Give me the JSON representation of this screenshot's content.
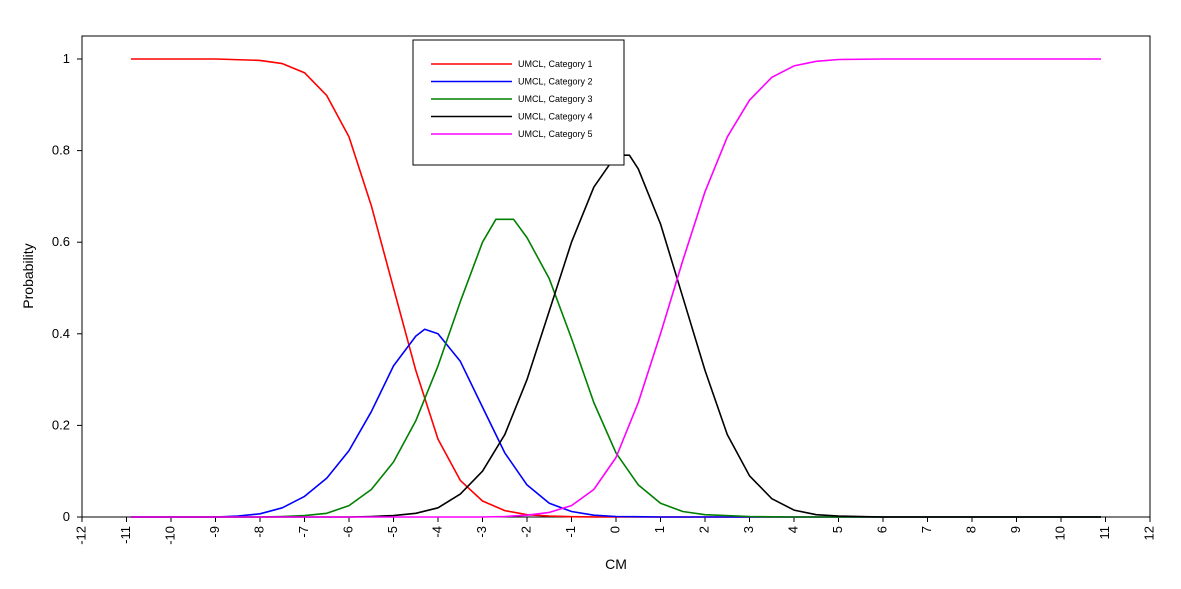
{
  "chart_data": {
    "type": "line",
    "xlabel": "CM",
    "ylabel": "Probability",
    "xlim": [
      -12,
      12
    ],
    "ylim": [
      0,
      1.05
    ],
    "xticks": [
      "-12",
      "-11",
      "-10",
      "-9",
      "-8",
      "-7",
      "-6",
      "-5",
      "-4",
      "-3",
      "-2",
      "-1",
      "0",
      "1",
      "2",
      "3",
      "4",
      "5",
      "6",
      "7",
      "8",
      "9",
      "10",
      "11",
      "12"
    ],
    "yticks": [
      "0",
      "0.2",
      "0.4",
      "0.6",
      "0.8",
      "1"
    ],
    "grid": false,
    "legend_position": "top-center",
    "series": [
      {
        "name": "UMCL, Category 1",
        "color": "#ff0000",
        "x": [
          -10.9,
          -9,
          -8,
          -7.5,
          -7,
          -6.5,
          -6,
          -5.5,
          -5,
          -4.5,
          -4,
          -3.5,
          -3,
          -2.5,
          -2,
          -1.5,
          -1,
          -0.5,
          0,
          1,
          2,
          4,
          6,
          8,
          10,
          10.9
        ],
        "y": [
          1,
          1,
          0.997,
          0.99,
          0.97,
          0.92,
          0.83,
          0.68,
          0.5,
          0.32,
          0.17,
          0.08,
          0.035,
          0.014,
          0.005,
          0.002,
          0.0007,
          0.0002,
          0,
          0,
          0,
          0,
          0,
          0,
          0,
          0
        ]
      },
      {
        "name": "UMCL, Category 2",
        "color": "#0000ff",
        "x": [
          -10.9,
          -9,
          -8.5,
          -8,
          -7.5,
          -7,
          -6.5,
          -6,
          -5.5,
          -5,
          -4.5,
          -4.3,
          -4,
          -3.5,
          -3,
          -2.5,
          -2,
          -1.5,
          -1,
          -0.5,
          0,
          1,
          2,
          4,
          6,
          8,
          10,
          10.9
        ],
        "y": [
          0,
          0,
          0.002,
          0.007,
          0.02,
          0.045,
          0.085,
          0.145,
          0.23,
          0.33,
          0.395,
          0.41,
          0.4,
          0.34,
          0.24,
          0.14,
          0.07,
          0.03,
          0.012,
          0.004,
          0.001,
          0,
          0,
          0,
          0,
          0,
          0,
          0
        ]
      },
      {
        "name": "UMCL, Category 3",
        "color": "#008000",
        "x": [
          -10.9,
          -8,
          -7.5,
          -7,
          -6.5,
          -6,
          -5.5,
          -5,
          -4.5,
          -4,
          -3.5,
          -3,
          -2.7,
          -2.3,
          -2,
          -1.5,
          -1,
          -0.5,
          0,
          0.5,
          1,
          1.5,
          2,
          3,
          4,
          6,
          8,
          10,
          10.9
        ],
        "y": [
          0,
          0,
          0.001,
          0.003,
          0.008,
          0.025,
          0.06,
          0.12,
          0.21,
          0.33,
          0.47,
          0.6,
          0.65,
          0.65,
          0.61,
          0.52,
          0.39,
          0.25,
          0.14,
          0.07,
          0.03,
          0.012,
          0.005,
          0.001,
          0,
          0,
          0,
          0,
          0
        ],
        "note": ""
      },
      {
        "name": "UMCL, Category 4",
        "color": "#000000",
        "x": [
          -10.9,
          -6,
          -5.5,
          -5,
          -4.5,
          -4,
          -3.5,
          -3,
          -2.5,
          -2,
          -1.5,
          -1,
          -0.5,
          0,
          0.3,
          0.5,
          1,
          1.5,
          2,
          2.5,
          3,
          3.5,
          4,
          4.5,
          5,
          6,
          8,
          10,
          10.9
        ],
        "y": [
          0,
          0,
          0.001,
          0.003,
          0.008,
          0.02,
          0.05,
          0.1,
          0.18,
          0.3,
          0.45,
          0.6,
          0.72,
          0.79,
          0.79,
          0.76,
          0.64,
          0.48,
          0.32,
          0.18,
          0.09,
          0.04,
          0.015,
          0.005,
          0.002,
          0,
          0,
          0,
          0
        ]
      },
      {
        "name": "UMCL, Category 5",
        "color": "#ff00ff",
        "x": [
          -10.9,
          -3,
          -2.5,
          -2,
          -1.5,
          -1,
          -0.5,
          0,
          0.5,
          1,
          1.5,
          2,
          2.5,
          3,
          3.5,
          4,
          4.5,
          5,
          6,
          8,
          10,
          10.9
        ],
        "y": [
          0,
          0,
          0.001,
          0.004,
          0.01,
          0.025,
          0.06,
          0.13,
          0.25,
          0.4,
          0.56,
          0.71,
          0.83,
          0.91,
          0.96,
          0.985,
          0.995,
          0.999,
          1,
          1,
          1,
          1
        ]
      }
    ]
  }
}
